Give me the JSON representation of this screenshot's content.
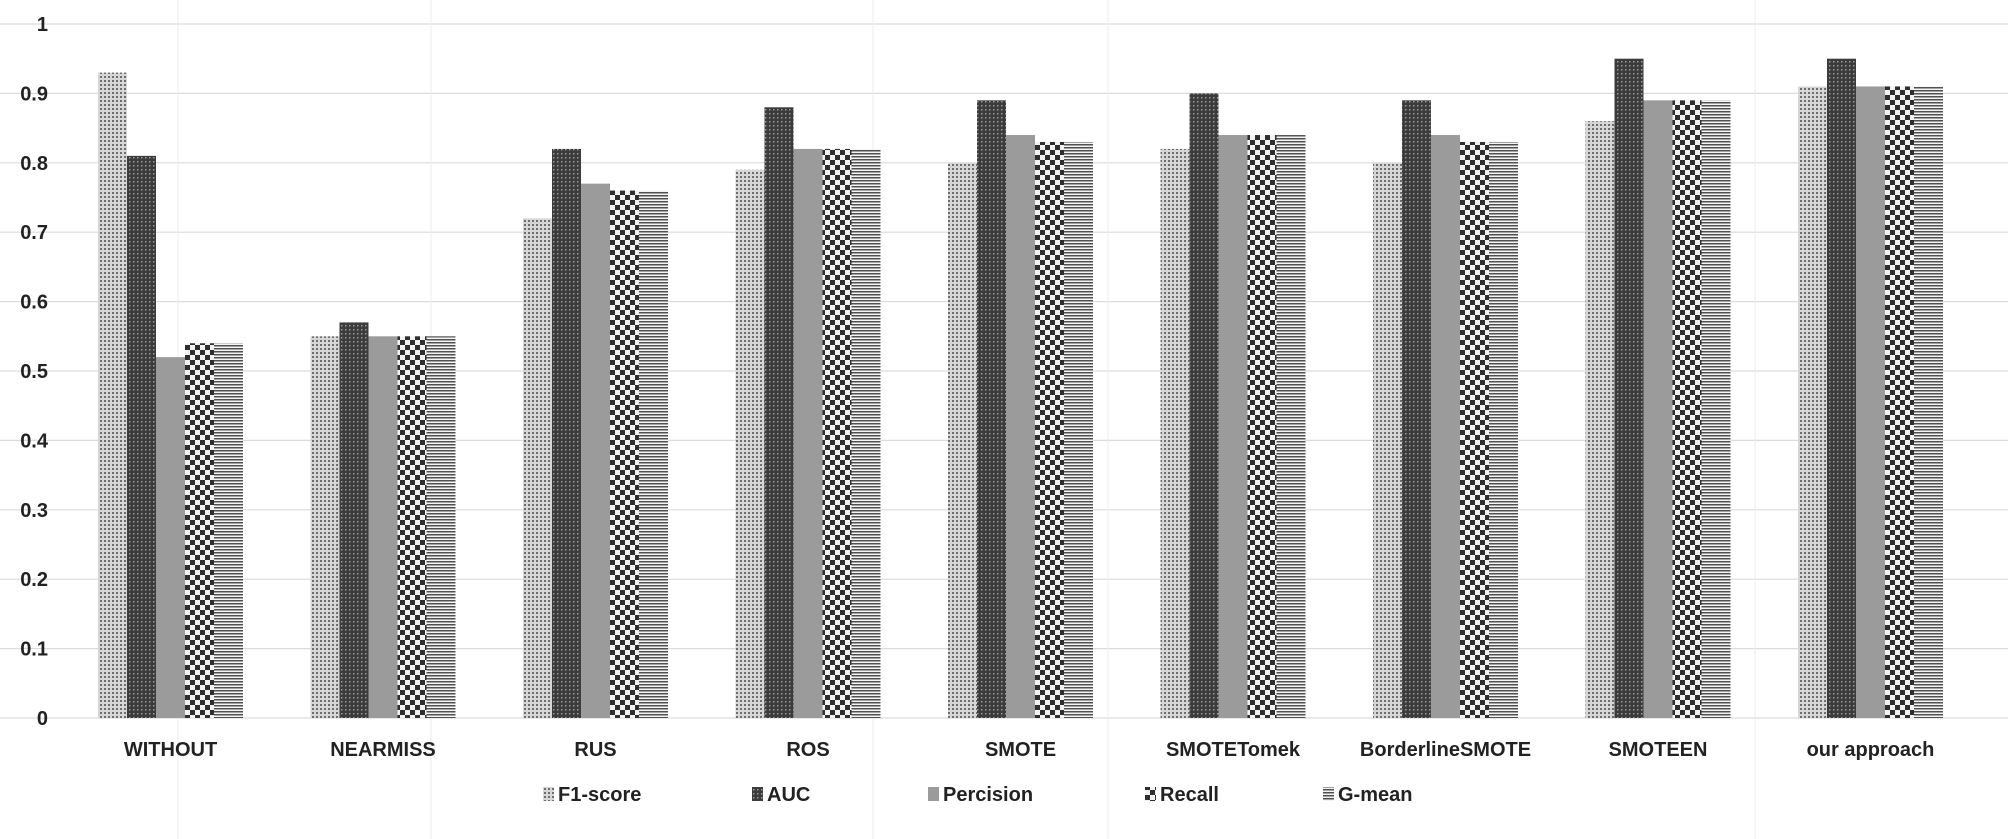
{
  "chart_data": {
    "type": "bar",
    "title": "",
    "xlabel": "",
    "ylabel": "",
    "ylim": [
      0,
      1
    ],
    "yticks": [
      "0",
      "0.1",
      "0.2",
      "0.3",
      "0.4",
      "0.5",
      "0.6",
      "0.7",
      "0.8",
      "0.9",
      "1"
    ],
    "categories": [
      "WITHOUT",
      "NEARMISS",
      "RUS",
      "ROS",
      "SMOTE",
      "SMOTETomek",
      "BorderlineSMOTE",
      "SMOTEEN",
      "our approach"
    ],
    "series": [
      {
        "name": "F1-score",
        "pattern": "dots",
        "color": "#8a8a8a",
        "values": [
          0.93,
          0.55,
          0.72,
          0.79,
          0.8,
          0.82,
          0.8,
          0.86,
          0.91
        ]
      },
      {
        "name": "AUC",
        "pattern": "dark-dots",
        "color": "#4a4a4a",
        "values": [
          0.81,
          0.57,
          0.82,
          0.88,
          0.89,
          0.9,
          0.89,
          0.95,
          0.95
        ]
      },
      {
        "name": "Percision",
        "pattern": "solid",
        "color": "#9a9a9a",
        "values": [
          0.52,
          0.55,
          0.77,
          0.82,
          0.84,
          0.84,
          0.84,
          0.89,
          0.91
        ]
      },
      {
        "name": "Recall",
        "pattern": "checker",
        "color": "#333333",
        "values": [
          0.54,
          0.55,
          0.76,
          0.82,
          0.83,
          0.84,
          0.83,
          0.89,
          0.91
        ]
      },
      {
        "name": "G-mean",
        "pattern": "hlines",
        "color": "#666666",
        "values": [
          0.54,
          0.55,
          0.76,
          0.82,
          0.83,
          0.84,
          0.83,
          0.89,
          0.91
        ]
      }
    ],
    "grid": true,
    "legend_position": "bottom-center"
  }
}
